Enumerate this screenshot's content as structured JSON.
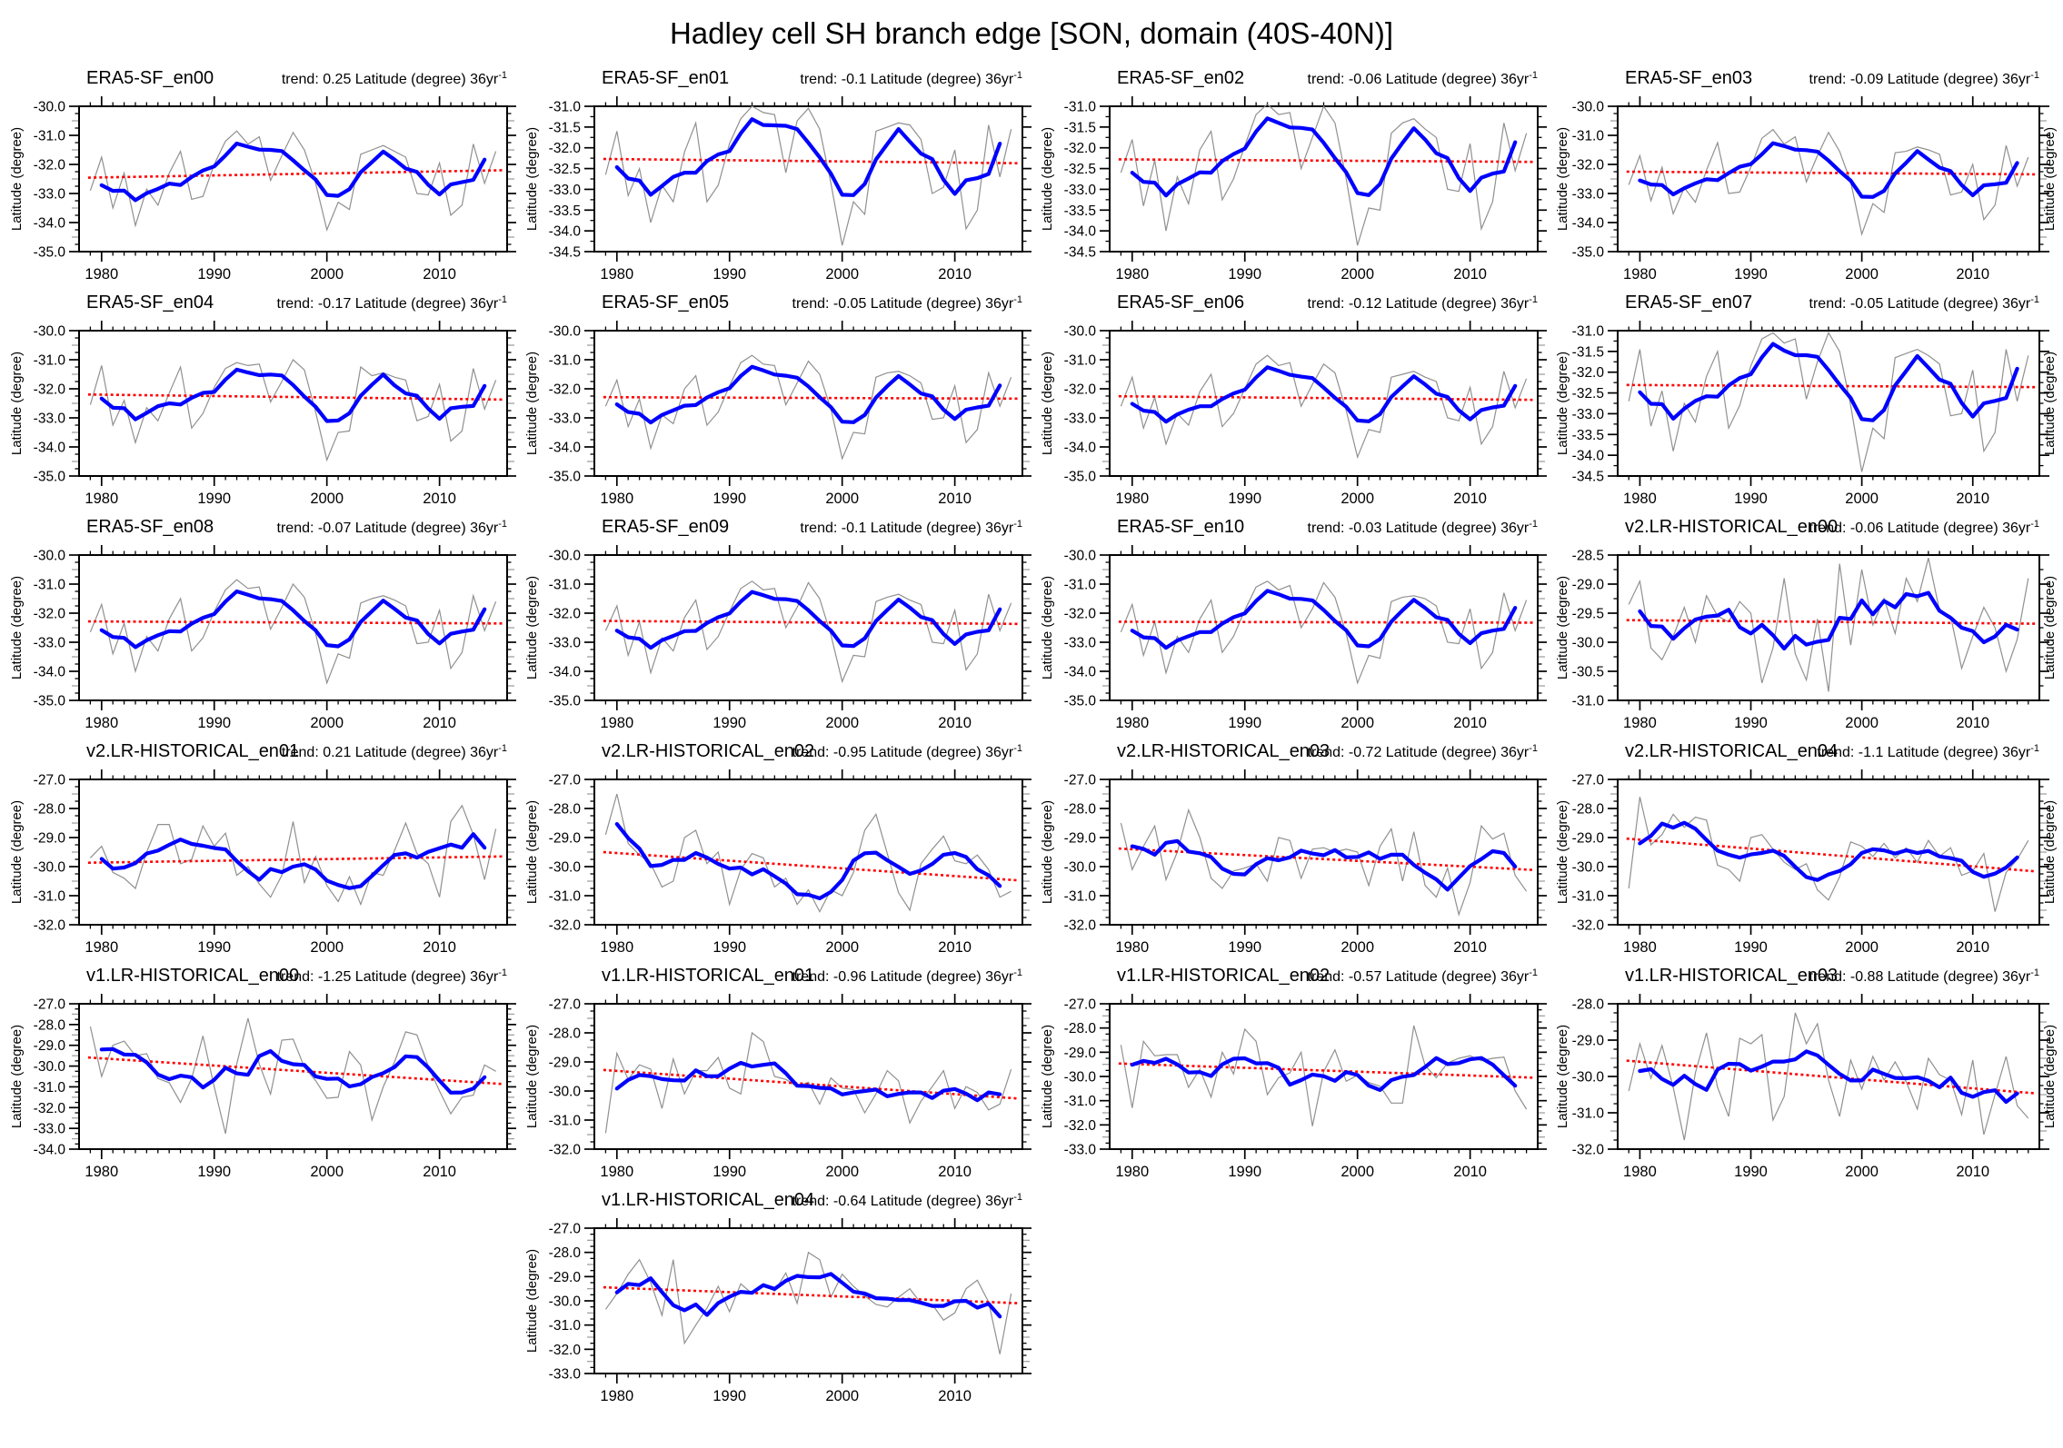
{
  "title": "Hadley cell SH branch edge [SON, domain (40S-40N)]",
  "axis": {
    "ylabel": "Latitude (degree)",
    "xticks": [
      1980,
      1990,
      2000,
      2010
    ],
    "x_start": 1979,
    "x_end": 2015,
    "trend_sup": "-1"
  },
  "colors": {
    "raw_line": "#909090",
    "smooth_line": "#0000ff",
    "trend_line": "#ff0000",
    "axis_color": "#000000",
    "half_tick_color": "#a0a0a0"
  },
  "chart_data": [
    {
      "type": "line",
      "name": "ERA5-SF_en00",
      "trend": 0.25,
      "trend_label": "trend: 0.25 Latitude (degree) 36yr",
      "ylim": [
        -35.0,
        -30.0
      ],
      "ystep": 1.0,
      "values": [
        -32.9,
        -31.75,
        -33.5,
        -32.3,
        -34.1,
        -32.85,
        -33.4,
        -32.3,
        -31.55,
        -33.2,
        -33.1,
        -32.0,
        -31.2,
        -30.85,
        -31.3,
        -31.05,
        -32.55,
        -31.7,
        -30.9,
        -31.5,
        -32.65,
        -34.25,
        -33.3,
        -33.55,
        -31.65,
        -31.5,
        -31.35,
        -31.55,
        -31.75,
        -33.0,
        -33.05,
        -31.95,
        -33.75,
        -33.4,
        -31.3,
        -32.65,
        -31.55
      ]
    },
    {
      "type": "line",
      "name": "ERA5-SF_en01",
      "trend": -0.1,
      "trend_label": "trend: -0.1 Latitude (degree) 36yr",
      "ylim": [
        -34.5,
        -31.0
      ],
      "ystep": 0.5,
      "values": [
        -32.65,
        -31.6,
        -33.15,
        -32.5,
        -33.8,
        -32.9,
        -33.3,
        -32.1,
        -31.4,
        -33.3,
        -32.9,
        -31.9,
        -31.3,
        -31.0,
        -31.15,
        -31.2,
        -32.6,
        -31.35,
        -31.05,
        -31.55,
        -32.85,
        -34.35,
        -33.3,
        -33.6,
        -31.6,
        -31.5,
        -31.4,
        -31.45,
        -31.8,
        -33.1,
        -32.95,
        -32.05,
        -33.95,
        -33.5,
        -31.45,
        -32.7,
        -31.55
      ]
    },
    {
      "type": "line",
      "name": "ERA5-SF_en02",
      "trend": -0.06,
      "trend_label": "trend: -0.06 Latitude (degree) 36yr",
      "ylim": [
        -34.5,
        -31.0
      ],
      "ystep": 0.5,
      "values": [
        -32.6,
        -31.8,
        -33.4,
        -32.3,
        -34.0,
        -32.7,
        -33.35,
        -32.05,
        -31.6,
        -33.25,
        -32.75,
        -31.95,
        -31.2,
        -30.95,
        -31.2,
        -31.15,
        -32.5,
        -31.75,
        -31.0,
        -31.4,
        -32.75,
        -34.35,
        -33.45,
        -33.5,
        -31.65,
        -31.4,
        -31.3,
        -31.55,
        -31.75,
        -33.0,
        -33.05,
        -31.9,
        -33.95,
        -33.3,
        -31.4,
        -32.55,
        -31.65
      ]
    },
    {
      "type": "line",
      "name": "ERA5-SF_en03",
      "trend": -0.09,
      "trend_label": "trend: -0.09 Latitude (degree) 36yr",
      "ylim": [
        -35.0,
        -30.0
      ],
      "ystep": 1.0,
      "values": [
        -32.7,
        -31.7,
        -33.25,
        -32.1,
        -33.7,
        -32.8,
        -33.3,
        -32.2,
        -31.25,
        -33.0,
        -32.95,
        -32.1,
        -31.1,
        -30.8,
        -31.3,
        -31.05,
        -32.6,
        -31.7,
        -30.9,
        -31.55,
        -32.6,
        -34.4,
        -33.35,
        -33.65,
        -31.6,
        -31.55,
        -31.4,
        -31.5,
        -31.65,
        -33.05,
        -32.95,
        -32.0,
        -33.9,
        -33.4,
        -31.35,
        -32.75,
        -31.75
      ]
    },
    {
      "type": "line",
      "name": "ERA5-SF_en04",
      "trend": -0.17,
      "trend_label": "trend: -0.17 Latitude (degree) 36yr",
      "ylim": [
        -35.0,
        -30.0
      ],
      "ystep": 1.0,
      "values": [
        -32.55,
        -31.2,
        -33.25,
        -32.4,
        -33.85,
        -32.65,
        -33.1,
        -32.15,
        -31.25,
        -33.35,
        -32.85,
        -31.95,
        -31.3,
        -31.1,
        -31.2,
        -31.15,
        -32.45,
        -31.75,
        -31.0,
        -31.35,
        -32.8,
        -34.45,
        -33.5,
        -33.45,
        -31.25,
        -31.55,
        -31.45,
        -31.6,
        -31.7,
        -33.1,
        -32.95,
        -31.85,
        -33.8,
        -33.45,
        -31.3,
        -32.7,
        -31.7
      ]
    },
    {
      "type": "line",
      "name": "ERA5-SF_en05",
      "trend": -0.05,
      "trend_label": "trend: -0.05 Latitude (degree) 36yr",
      "ylim": [
        -35.0,
        -30.0
      ],
      "ystep": 1.0,
      "values": [
        -32.6,
        -31.7,
        -33.3,
        -32.35,
        -34.05,
        -32.9,
        -33.2,
        -32.0,
        -31.55,
        -33.25,
        -32.8,
        -31.9,
        -31.1,
        -30.85,
        -31.15,
        -31.2,
        -32.55,
        -31.8,
        -31.05,
        -31.5,
        -32.7,
        -34.4,
        -33.5,
        -33.55,
        -31.6,
        -31.45,
        -31.4,
        -31.55,
        -31.8,
        -33.05,
        -33.0,
        -31.9,
        -33.85,
        -33.4,
        -31.45,
        -32.6,
        -31.6
      ]
    },
    {
      "type": "line",
      "name": "ERA5-SF_en06",
      "trend": -0.12,
      "trend_label": "trend: -0.12 Latitude (degree) 36yr",
      "ylim": [
        -35.0,
        -30.0
      ],
      "ystep": 1.0,
      "values": [
        -32.6,
        -31.6,
        -33.35,
        -32.3,
        -33.9,
        -32.85,
        -33.25,
        -32.1,
        -31.5,
        -33.3,
        -32.85,
        -32.0,
        -31.15,
        -30.85,
        -31.2,
        -31.1,
        -32.6,
        -31.85,
        -31.15,
        -31.45,
        -32.75,
        -34.35,
        -33.4,
        -33.5,
        -31.6,
        -31.5,
        -31.4,
        -31.6,
        -31.75,
        -33.0,
        -33.1,
        -31.95,
        -33.9,
        -33.3,
        -31.4,
        -32.65,
        -31.65
      ]
    },
    {
      "type": "line",
      "name": "ERA5-SF_en07",
      "trend": -0.05,
      "trend_label": "trend: -0.05 Latitude (degree) 36yr",
      "ylim": [
        -34.5,
        -31.0
      ],
      "ystep": 0.5,
      "values": [
        -32.7,
        -31.45,
        -33.3,
        -32.45,
        -33.9,
        -32.75,
        -33.2,
        -32.1,
        -31.5,
        -33.35,
        -32.8,
        -31.85,
        -31.2,
        -31.05,
        -31.3,
        -31.2,
        -32.65,
        -31.75,
        -31.05,
        -31.5,
        -32.8,
        -34.4,
        -33.35,
        -33.6,
        -31.65,
        -31.55,
        -31.45,
        -31.6,
        -31.8,
        -33.05,
        -33.0,
        -31.95,
        -33.9,
        -33.45,
        -31.45,
        -32.7,
        -31.6
      ]
    },
    {
      "type": "line",
      "name": "ERA5-SF_en08",
      "trend": -0.07,
      "trend_label": "trend: -0.07 Latitude (degree) 36yr",
      "ylim": [
        -35.0,
        -30.0
      ],
      "ystep": 1.0,
      "values": [
        -32.65,
        -31.7,
        -33.4,
        -32.35,
        -34.0,
        -32.8,
        -33.3,
        -32.2,
        -31.5,
        -33.3,
        -32.85,
        -31.95,
        -31.2,
        -30.85,
        -31.15,
        -31.1,
        -32.55,
        -31.8,
        -31.0,
        -31.45,
        -32.7,
        -34.4,
        -33.4,
        -33.55,
        -31.65,
        -31.5,
        -31.4,
        -31.55,
        -31.75,
        -33.05,
        -33.0,
        -31.9,
        -33.9,
        -33.35,
        -31.4,
        -32.6,
        -31.6
      ]
    },
    {
      "type": "line",
      "name": "ERA5-SF_en09",
      "trend": -0.1,
      "trend_label": "trend: -0.1 Latitude (degree) 36yr",
      "ylim": [
        -35.0,
        -30.0
      ],
      "ystep": 1.0,
      "values": [
        -32.6,
        -31.75,
        -33.45,
        -32.3,
        -34.05,
        -32.85,
        -33.3,
        -32.15,
        -31.55,
        -33.25,
        -32.8,
        -31.95,
        -31.15,
        -30.9,
        -31.2,
        -31.15,
        -32.5,
        -31.8,
        -30.95,
        -31.5,
        -32.75,
        -34.35,
        -33.45,
        -33.5,
        -31.6,
        -31.45,
        -31.35,
        -31.55,
        -31.7,
        -33.0,
        -33.05,
        -31.9,
        -33.95,
        -33.4,
        -31.35,
        -32.6,
        -31.65
      ]
    },
    {
      "type": "line",
      "name": "ERA5-SF_en10",
      "trend": -0.03,
      "trend_label": "trend: -0.03 Latitude (degree) 36yr",
      "ylim": [
        -35.0,
        -30.0
      ],
      "ystep": 1.0,
      "values": [
        -32.65,
        -31.7,
        -33.45,
        -32.3,
        -34.05,
        -32.8,
        -33.35,
        -32.2,
        -31.55,
        -33.35,
        -32.8,
        -31.9,
        -31.1,
        -30.9,
        -31.2,
        -31.05,
        -32.5,
        -31.85,
        -30.95,
        -31.45,
        -32.7,
        -34.4,
        -33.45,
        -33.55,
        -31.6,
        -31.45,
        -31.4,
        -31.5,
        -31.75,
        -33.0,
        -33.05,
        -31.85,
        -33.9,
        -33.35,
        -31.3,
        -32.6,
        -31.55
      ]
    },
    {
      "type": "line",
      "name": "v2.LR-HISTORICAL_en00",
      "trend": -0.06,
      "trend_label": "trend: -0.06 Latitude (degree) 36yr",
      "ylim": [
        -31.0,
        -28.5
      ],
      "ystep": 0.5,
      "values": [
        -29.35,
        -28.95,
        -30.1,
        -30.3,
        -29.9,
        -29.4,
        -30.0,
        -29.2,
        -29.55,
        -29.65,
        -29.3,
        -29.5,
        -30.7,
        -30.1,
        -28.9,
        -30.2,
        -30.65,
        -29.6,
        -30.85,
        -28.65,
        -30.05,
        -28.75,
        -29.7,
        -29.25,
        -29.85,
        -28.9,
        -29.3,
        -28.55,
        -29.45,
        -29.55,
        -30.45,
        -29.9,
        -29.4,
        -29.75,
        -30.5,
        -29.95,
        -28.9
      ]
    },
    {
      "type": "line",
      "name": "v2.LR-HISTORICAL_en01",
      "trend": 0.21,
      "trend_label": "trend: 0.21 Latitude (degree) 36yr",
      "ylim": [
        -32.0,
        -27.0
      ],
      "ystep": 1.0,
      "values": [
        -29.7,
        -29.3,
        -30.2,
        -30.4,
        -30.75,
        -29.5,
        -28.55,
        -28.55,
        -29.9,
        -29.75,
        -28.6,
        -29.3,
        -28.85,
        -30.3,
        -30.0,
        -30.6,
        -31.05,
        -30.3,
        -28.45,
        -30.55,
        -29.65,
        -30.65,
        -31.2,
        -30.35,
        -31.3,
        -30.2,
        -30.3,
        -29.45,
        -28.5,
        -29.55,
        -29.9,
        -31.05,
        -28.45,
        -27.9,
        -28.9,
        -30.45,
        -28.7
      ]
    },
    {
      "type": "line",
      "name": "v2.LR-HISTORICAL_en02",
      "trend": -0.95,
      "trend_label": "trend: -0.95 Latitude (degree) 36yr",
      "ylim": [
        -32.0,
        -27.0
      ],
      "ystep": 1.0,
      "values": [
        -28.9,
        -27.5,
        -29.2,
        -29.6,
        -29.9,
        -30.7,
        -30.5,
        -29.0,
        -28.75,
        -29.9,
        -29.5,
        -31.3,
        -30.1,
        -29.55,
        -29.7,
        -30.7,
        -30.4,
        -31.3,
        -30.8,
        -31.55,
        -30.8,
        -31.0,
        -30.2,
        -28.75,
        -28.2,
        -29.55,
        -30.9,
        -31.5,
        -29.9,
        -29.4,
        -28.95,
        -29.8,
        -29.9,
        -29.6,
        -30.1,
        -31.05,
        -30.85
      ]
    },
    {
      "type": "line",
      "name": "v2.LR-HISTORICAL_en03",
      "trend": -0.72,
      "trend_label": "trend: -0.72 Latitude (degree) 36yr",
      "ylim": [
        -32.0,
        -27.0
      ],
      "ystep": 1.0,
      "values": [
        -28.5,
        -30.1,
        -29.3,
        -28.6,
        -30.45,
        -29.5,
        -28.05,
        -29.0,
        -30.4,
        -30.75,
        -30.15,
        -30.05,
        -29.9,
        -30.5,
        -29.0,
        -29.1,
        -30.4,
        -29.4,
        -29.35,
        -29.5,
        -29.4,
        -29.5,
        -30.65,
        -29.3,
        -28.7,
        -30.5,
        -28.8,
        -30.65,
        -31.05,
        -30.05,
        -31.65,
        -30.55,
        -28.6,
        -29.05,
        -28.85,
        -30.3,
        -30.85
      ]
    },
    {
      "type": "line",
      "name": "v2.LR-HISTORICAL_en04",
      "trend": -1.1,
      "trend_label": "trend: -1.1 Latitude (degree) 36yr",
      "ylim": [
        -32.0,
        -27.0
      ],
      "ystep": 1.0,
      "values": [
        -30.75,
        -27.6,
        -29.25,
        -28.9,
        -28.2,
        -28.65,
        -28.3,
        -28.4,
        -29.95,
        -30.1,
        -30.5,
        -29.0,
        -28.9,
        -29.4,
        -29.85,
        -30.1,
        -29.9,
        -30.8,
        -31.15,
        -30.35,
        -29.15,
        -29.3,
        -29.65,
        -29.2,
        -29.7,
        -29.35,
        -29.85,
        -29.1,
        -29.65,
        -29.35,
        -30.3,
        -30.15,
        -29.55,
        -31.55,
        -30.2,
        -29.75,
        -29.1
      ]
    },
    {
      "type": "line",
      "name": "v1.LR-HISTORICAL_en00",
      "trend": -1.25,
      "trend_label": "trend: -1.25 Latitude (degree) 36yr",
      "ylim": [
        -34.0,
        -27.0
      ],
      "ystep": 1.0,
      "values": [
        -28.1,
        -30.5,
        -29.0,
        -28.8,
        -29.5,
        -29.4,
        -30.6,
        -30.8,
        -31.75,
        -30.6,
        -28.55,
        -31.0,
        -33.25,
        -29.9,
        -27.7,
        -29.9,
        -31.35,
        -28.75,
        -28.7,
        -30.05,
        -30.7,
        -31.55,
        -31.5,
        -29.3,
        -29.95,
        -32.6,
        -31.0,
        -29.8,
        -28.35,
        -28.5,
        -30.0,
        -31.2,
        -32.3,
        -31.5,
        -31.4,
        -29.95,
        -30.25
      ]
    },
    {
      "type": "line",
      "name": "v1.LR-HISTORICAL_en01",
      "trend": -0.96,
      "trend_label": "trend: -0.96 Latitude (degree) 36yr",
      "ylim": [
        -32.0,
        -27.0
      ],
      "ystep": 1.0,
      "values": [
        -31.45,
        -28.7,
        -29.6,
        -29.1,
        -29.25,
        -30.6,
        -28.9,
        -30.1,
        -29.3,
        -29.3,
        -28.85,
        -29.9,
        -30.1,
        -28.0,
        -28.3,
        -29.5,
        -29.6,
        -29.85,
        -29.7,
        -30.45,
        -29.55,
        -29.9,
        -29.95,
        -30.75,
        -30.1,
        -29.3,
        -29.65,
        -31.1,
        -30.35,
        -29.85,
        -29.3,
        -30.6,
        -29.85,
        -30.05,
        -30.65,
        -30.45,
        -29.25
      ]
    },
    {
      "type": "line",
      "name": "v1.LR-HISTORICAL_en02",
      "trend": -0.57,
      "trend_label": "trend: -0.57 Latitude (degree) 36yr",
      "ylim": [
        -33.0,
        -27.0
      ],
      "ystep": 1.0,
      "values": [
        -28.7,
        -31.3,
        -28.55,
        -29.15,
        -29.1,
        -29.1,
        -30.45,
        -29.7,
        -30.85,
        -29.0,
        -29.9,
        -28.05,
        -28.55,
        -30.75,
        -30.05,
        -29.85,
        -29.0,
        -32.05,
        -29.8,
        -28.9,
        -30.2,
        -29.95,
        -30.25,
        -30.4,
        -31.1,
        -31.1,
        -27.9,
        -29.55,
        -30.05,
        -29.45,
        -29.25,
        -29.15,
        -29.35,
        -29.25,
        -29.2,
        -30.6,
        -31.35
      ]
    },
    {
      "type": "line",
      "name": "v1.LR-HISTORICAL_en03",
      "trend": -0.88,
      "trend_label": "trend: -0.88 Latitude (degree) 36yr",
      "ylim": [
        -32.0,
        -28.0
      ],
      "ystep": 1.0,
      "values": [
        -30.4,
        -29.1,
        -30.05,
        -29.15,
        -30.3,
        -31.75,
        -29.9,
        -28.8,
        -30.3,
        -31.1,
        -28.95,
        -29.1,
        -28.85,
        -31.2,
        -30.55,
        -28.25,
        -29.1,
        -28.55,
        -30.1,
        -31.1,
        -29.55,
        -30.35,
        -29.45,
        -30.1,
        -29.6,
        -30.15,
        -30.9,
        -29.5,
        -29.95,
        -30.1,
        -31.05,
        -29.55,
        -31.6,
        -30.5,
        -29.45,
        -30.8,
        -31.15
      ]
    },
    {
      "type": "line",
      "name": "v1.LR-HISTORICAL_en04",
      "trend": -0.64,
      "trend_label": "trend: -0.64 Latitude (degree) 36yr",
      "ylim": [
        -33.0,
        -27.0
      ],
      "ystep": 1.0,
      "values": [
        -30.35,
        -29.7,
        -28.9,
        -28.3,
        -29.25,
        -30.6,
        -28.3,
        -31.75,
        -31.0,
        -30.3,
        -29.4,
        -30.45,
        -29.3,
        -29.7,
        -29.3,
        -29.6,
        -28.85,
        -30.1,
        -28.0,
        -28.3,
        -29.85,
        -28.9,
        -29.4,
        -29.8,
        -30.15,
        -30.25,
        -29.85,
        -29.5,
        -30.1,
        -30.15,
        -30.8,
        -30.5,
        -29.5,
        -29.15,
        -30.05,
        -32.2,
        -29.7
      ]
    }
  ]
}
